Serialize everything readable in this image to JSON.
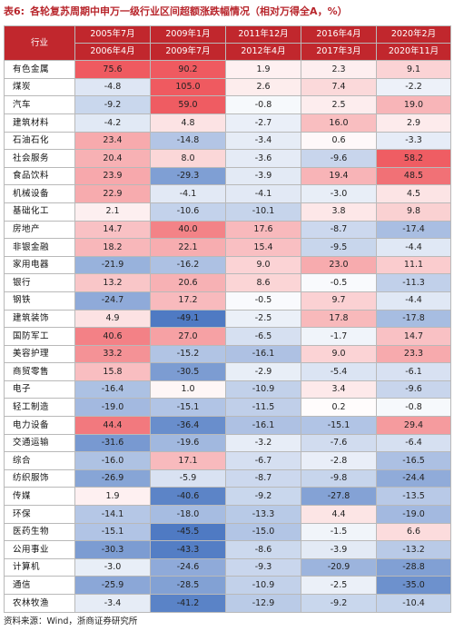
{
  "title": {
    "number": "表6:",
    "text": "各轮复苏周期中申万一级行业区间超额涨跌幅情况（相对万得全A，%）"
  },
  "header": {
    "industry_label": "行业",
    "periods": [
      {
        "start": "2005年7月",
        "end": "2006年4月"
      },
      {
        "start": "2009年1月",
        "end": "2009年7月"
      },
      {
        "start": "2011年12月",
        "end": "2012年4月"
      },
      {
        "start": "2016年4月",
        "end": "2017年3月"
      },
      {
        "start": "2020年2月",
        "end": "2020年11月"
      }
    ]
  },
  "rows": [
    {
      "industry": "有色金属",
      "values": [
        "75.6",
        "90.2",
        "1.9",
        "2.3",
        "9.1"
      ]
    },
    {
      "industry": "煤炭",
      "values": [
        "-4.8",
        "105.0",
        "2.6",
        "7.4",
        "-2.2"
      ]
    },
    {
      "industry": "汽车",
      "values": [
        "-9.2",
        "59.0",
        "-0.8",
        "2.5",
        "19.0"
      ]
    },
    {
      "industry": "建筑材料",
      "values": [
        "-4.2",
        "4.8",
        "-2.7",
        "16.0",
        "2.9"
      ]
    },
    {
      "industry": "石油石化",
      "values": [
        "23.4",
        "-14.8",
        "-3.4",
        "0.6",
        "-3.3"
      ]
    },
    {
      "industry": "社会服务",
      "values": [
        "20.4",
        "8.0",
        "-3.6",
        "-9.6",
        "58.2"
      ]
    },
    {
      "industry": "食品饮料",
      "values": [
        "23.9",
        "-29.3",
        "-3.9",
        "19.4",
        "48.5"
      ]
    },
    {
      "industry": "机械设备",
      "values": [
        "22.9",
        "-4.1",
        "-4.1",
        "-3.0",
        "4.5"
      ]
    },
    {
      "industry": "基础化工",
      "values": [
        "2.1",
        "-10.6",
        "-10.1",
        "3.8",
        "9.8"
      ]
    },
    {
      "industry": "房地产",
      "values": [
        "14.7",
        "40.0",
        "17.6",
        "-8.7",
        "-17.4"
      ]
    },
    {
      "industry": "非银金融",
      "values": [
        "18.2",
        "22.1",
        "15.4",
        "-9.5",
        "-4.4"
      ]
    },
    {
      "industry": "家用电器",
      "values": [
        "-21.9",
        "-16.2",
        "9.0",
        "23.0",
        "11.1"
      ]
    },
    {
      "industry": "银行",
      "values": [
        "13.2",
        "20.6",
        "8.6",
        "-0.5",
        "-11.3"
      ]
    },
    {
      "industry": "钢铁",
      "values": [
        "-24.7",
        "17.2",
        "-0.5",
        "9.7",
        "-4.4"
      ]
    },
    {
      "industry": "建筑装饰",
      "values": [
        "4.9",
        "-49.1",
        "-2.5",
        "17.8",
        "-17.8"
      ]
    },
    {
      "industry": "国防军工",
      "values": [
        "40.6",
        "27.0",
        "-6.5",
        "-1.7",
        "14.7"
      ]
    },
    {
      "industry": "美容护理",
      "values": [
        "33.2",
        "-15.2",
        "-16.1",
        "9.0",
        "23.3"
      ]
    },
    {
      "industry": "商贸零售",
      "values": [
        "15.8",
        "-30.5",
        "-2.9",
        "-5.4",
        "-6.1"
      ]
    },
    {
      "industry": "电子",
      "values": [
        "-16.4",
        "1.0",
        "-10.9",
        "3.4",
        "-9.6"
      ]
    },
    {
      "industry": "轻工制造",
      "values": [
        "-19.0",
        "-15.1",
        "-11.5",
        "0.2",
        "-0.8"
      ]
    },
    {
      "industry": "电力设备",
      "values": [
        "44.4",
        "-36.4",
        "-16.1",
        "-15.1",
        "29.4"
      ]
    },
    {
      "industry": "交通运输",
      "values": [
        "-31.6",
        "-19.6",
        "-3.2",
        "-7.6",
        "-6.4"
      ]
    },
    {
      "industry": "综合",
      "values": [
        "-16.0",
        "17.1",
        "-6.7",
        "-2.8",
        "-16.5"
      ]
    },
    {
      "industry": "纺织服饰",
      "values": [
        "-26.9",
        "-5.9",
        "-8.7",
        "-9.8",
        "-24.4"
      ]
    },
    {
      "industry": "传媒",
      "values": [
        "1.9",
        "-40.6",
        "-9.2",
        "-27.8",
        "-13.5"
      ]
    },
    {
      "industry": "环保",
      "values": [
        "-14.1",
        "-18.0",
        "-13.3",
        "4.4",
        "-19.0"
      ]
    },
    {
      "industry": "医药生物",
      "values": [
        "-15.1",
        "-45.5",
        "-15.0",
        "-1.5",
        "6.6"
      ]
    },
    {
      "industry": "公用事业",
      "values": [
        "-30.3",
        "-43.3",
        "-8.6",
        "-3.9",
        "-13.2"
      ]
    },
    {
      "industry": "计算机",
      "values": [
        "-3.0",
        "-24.6",
        "-9.3",
        "-20.9",
        "-28.8"
      ]
    },
    {
      "industry": "通信",
      "values": [
        "-25.9",
        "-28.5",
        "-10.9",
        "-2.5",
        "-35.0"
      ]
    },
    {
      "industry": "农林牧渔",
      "values": [
        "-3.4",
        "-41.2",
        "-12.9",
        "-9.2",
        "-10.4"
      ]
    }
  ],
  "colors": {
    "header_bg": "#c1272d",
    "positive_max": "#ef5a60",
    "negative_max": "#4f7ac3",
    "title": "#b8262c"
  },
  "source": "资料来源：Wind，浙商证券研究所"
}
